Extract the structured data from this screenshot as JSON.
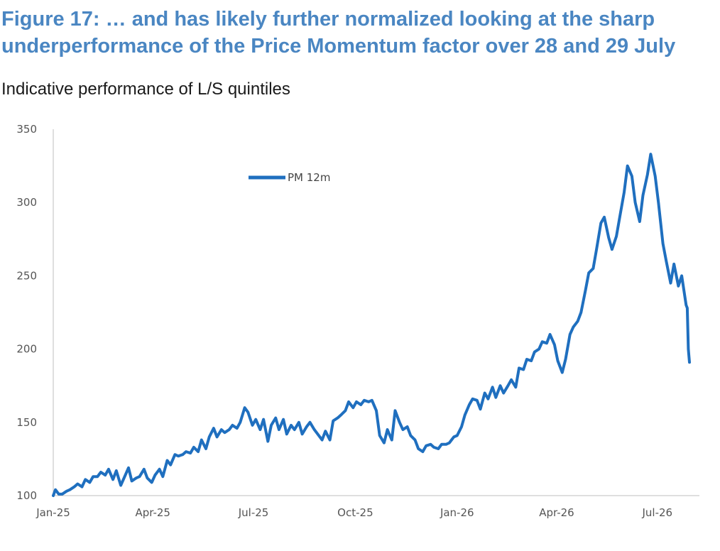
{
  "figure": {
    "title": "Figure 17: … and has likely further normalized looking at the sharp underperformance of the Price Momentum factor over 28 and 29 July",
    "subtitle": "Indicative performance of L/S quintiles"
  },
  "chart_data": {
    "type": "line",
    "title": "",
    "xlabel": "",
    "ylabel": "",
    "ylim": [
      100,
      350
    ],
    "yticks": [
      100,
      150,
      200,
      250,
      300,
      350
    ],
    "xlim": [
      "2025-01-01",
      "2026-08-08"
    ],
    "xticks": [
      {
        "date": "2025-01-01",
        "label": "Jan-25"
      },
      {
        "date": "2025-04-01",
        "label": "Apr-25"
      },
      {
        "date": "2025-07-01",
        "label": "Jul-25"
      },
      {
        "date": "2025-10-01",
        "label": "Oct-25"
      },
      {
        "date": "2026-01-01",
        "label": "Jan-26"
      },
      {
        "date": "2026-04-01",
        "label": "Apr-26"
      },
      {
        "date": "2026-07-01",
        "label": "Jul-26"
      }
    ],
    "grid": false,
    "legend": "top-left",
    "color": "#1f6fbf",
    "series": [
      {
        "name": "PM 12m",
        "points": [
          [
            "2025-01-01",
            100
          ],
          [
            "2025-01-03",
            104
          ],
          [
            "2025-01-06",
            101
          ],
          [
            "2025-01-09",
            101
          ],
          [
            "2025-01-13",
            103
          ],
          [
            "2025-01-16",
            104
          ],
          [
            "2025-01-20",
            106
          ],
          [
            "2025-01-23",
            108
          ],
          [
            "2025-01-27",
            106
          ],
          [
            "2025-01-30",
            111
          ],
          [
            "2025-02-03",
            109
          ],
          [
            "2025-02-06",
            113
          ],
          [
            "2025-02-10",
            113
          ],
          [
            "2025-02-13",
            116
          ],
          [
            "2025-02-17",
            114
          ],
          [
            "2025-02-20",
            118
          ],
          [
            "2025-02-24",
            111
          ],
          [
            "2025-02-27",
            117
          ],
          [
            "2025-03-03",
            107
          ],
          [
            "2025-03-06",
            112
          ],
          [
            "2025-03-10",
            119
          ],
          [
            "2025-03-13",
            110
          ],
          [
            "2025-03-17",
            112
          ],
          [
            "2025-03-20",
            113
          ],
          [
            "2025-03-24",
            118
          ],
          [
            "2025-03-27",
            112
          ],
          [
            "2025-03-31",
            109
          ],
          [
            "2025-04-03",
            114
          ],
          [
            "2025-04-07",
            118
          ],
          [
            "2025-04-10",
            113
          ],
          [
            "2025-04-14",
            124
          ],
          [
            "2025-04-17",
            121
          ],
          [
            "2025-04-21",
            128
          ],
          [
            "2025-04-24",
            127
          ],
          [
            "2025-04-28",
            128
          ],
          [
            "2025-05-01",
            130
          ],
          [
            "2025-05-05",
            129
          ],
          [
            "2025-05-08",
            133
          ],
          [
            "2025-05-12",
            130
          ],
          [
            "2025-05-15",
            138
          ],
          [
            "2025-05-19",
            132
          ],
          [
            "2025-05-22",
            140
          ],
          [
            "2025-05-26",
            146
          ],
          [
            "2025-05-29",
            140
          ],
          [
            "2025-06-02",
            145
          ],
          [
            "2025-06-05",
            143
          ],
          [
            "2025-06-09",
            145
          ],
          [
            "2025-06-12",
            148
          ],
          [
            "2025-06-16",
            146
          ],
          [
            "2025-06-19",
            150
          ],
          [
            "2025-06-23",
            160
          ],
          [
            "2025-06-26",
            157
          ],
          [
            "2025-06-30",
            148
          ],
          [
            "2025-07-03",
            152
          ],
          [
            "2025-07-07",
            145
          ],
          [
            "2025-07-10",
            152
          ],
          [
            "2025-07-14",
            137
          ],
          [
            "2025-07-17",
            148
          ],
          [
            "2025-07-21",
            153
          ],
          [
            "2025-07-24",
            145
          ],
          [
            "2025-07-28",
            152
          ],
          [
            "2025-07-31",
            142
          ],
          [
            "2025-08-04",
            148
          ],
          [
            "2025-08-07",
            145
          ],
          [
            "2025-08-11",
            150
          ],
          [
            "2025-08-14",
            142
          ],
          [
            "2025-08-18",
            147
          ],
          [
            "2025-08-21",
            150
          ],
          [
            "2025-08-25",
            145
          ],
          [
            "2025-08-28",
            142
          ],
          [
            "2025-09-01",
            138
          ],
          [
            "2025-09-04",
            144
          ],
          [
            "2025-09-08",
            138
          ],
          [
            "2025-09-11",
            151
          ],
          [
            "2025-09-15",
            153
          ],
          [
            "2025-09-18",
            155
          ],
          [
            "2025-09-22",
            158
          ],
          [
            "2025-09-25",
            164
          ],
          [
            "2025-09-29",
            160
          ],
          [
            "2025-10-02",
            164
          ],
          [
            "2025-10-06",
            162
          ],
          [
            "2025-10-09",
            165
          ],
          [
            "2025-10-13",
            164
          ],
          [
            "2025-10-16",
            165
          ],
          [
            "2025-10-20",
            158
          ],
          [
            "2025-10-23",
            141
          ],
          [
            "2025-10-27",
            136
          ],
          [
            "2025-10-30",
            145
          ],
          [
            "2025-11-03",
            138
          ],
          [
            "2025-11-06",
            158
          ],
          [
            "2025-11-10",
            150
          ],
          [
            "2025-11-13",
            145
          ],
          [
            "2025-11-17",
            147
          ],
          [
            "2025-11-20",
            141
          ],
          [
            "2025-11-24",
            138
          ],
          [
            "2025-11-27",
            132
          ],
          [
            "2025-12-01",
            130
          ],
          [
            "2025-12-04",
            134
          ],
          [
            "2025-12-08",
            135
          ],
          [
            "2025-12-11",
            133
          ],
          [
            "2025-12-15",
            132
          ],
          [
            "2025-12-18",
            135
          ],
          [
            "2025-12-22",
            135
          ],
          [
            "2025-12-25",
            136
          ],
          [
            "2025-12-29",
            140
          ],
          [
            "2026-01-01",
            141
          ],
          [
            "2026-01-05",
            147
          ],
          [
            "2026-01-08",
            155
          ],
          [
            "2026-01-12",
            162
          ],
          [
            "2026-01-15",
            166
          ],
          [
            "2026-01-19",
            165
          ],
          [
            "2026-01-22",
            159
          ],
          [
            "2026-01-26",
            170
          ],
          [
            "2026-01-29",
            166
          ],
          [
            "2026-02-02",
            174
          ],
          [
            "2026-02-05",
            167
          ],
          [
            "2026-02-09",
            175
          ],
          [
            "2026-02-12",
            170
          ],
          [
            "2026-02-16",
            175
          ],
          [
            "2026-02-19",
            179
          ],
          [
            "2026-02-23",
            174
          ],
          [
            "2026-02-26",
            187
          ],
          [
            "2026-03-02",
            186
          ],
          [
            "2026-03-05",
            193
          ],
          [
            "2026-03-09",
            192
          ],
          [
            "2026-03-12",
            198
          ],
          [
            "2026-03-16",
            200
          ],
          [
            "2026-03-19",
            205
          ],
          [
            "2026-03-23",
            204
          ],
          [
            "2026-03-26",
            210
          ],
          [
            "2026-03-30",
            203
          ],
          [
            "2026-04-02",
            192
          ],
          [
            "2026-04-06",
            184
          ],
          [
            "2026-04-09",
            193
          ],
          [
            "2026-04-13",
            210
          ],
          [
            "2026-04-16",
            215
          ],
          [
            "2026-04-20",
            219
          ],
          [
            "2026-04-23",
            225
          ],
          [
            "2026-04-27",
            240
          ],
          [
            "2026-04-30",
            252
          ],
          [
            "2026-05-04",
            255
          ],
          [
            "2026-05-07",
            268
          ],
          [
            "2026-05-11",
            286
          ],
          [
            "2026-05-14",
            290
          ],
          [
            "2026-05-18",
            276
          ],
          [
            "2026-05-21",
            268
          ],
          [
            "2026-05-25",
            277
          ],
          [
            "2026-05-28",
            290
          ],
          [
            "2026-06-01",
            307
          ],
          [
            "2026-06-04",
            325
          ],
          [
            "2026-06-08",
            318
          ],
          [
            "2026-06-11",
            300
          ],
          [
            "2026-06-15",
            287
          ],
          [
            "2026-06-18",
            305
          ],
          [
            "2026-06-22",
            319
          ],
          [
            "2026-06-25",
            333
          ],
          [
            "2026-06-29",
            318
          ],
          [
            "2026-07-02",
            300
          ],
          [
            "2026-07-06",
            272
          ],
          [
            "2026-07-09",
            260
          ],
          [
            "2026-07-13",
            245
          ],
          [
            "2026-07-16",
            258
          ],
          [
            "2026-07-20",
            243
          ],
          [
            "2026-07-23",
            250
          ],
          [
            "2026-07-27",
            230
          ],
          [
            "2026-07-28",
            228
          ],
          [
            "2026-07-29",
            200
          ],
          [
            "2026-07-30",
            191
          ]
        ]
      }
    ]
  }
}
